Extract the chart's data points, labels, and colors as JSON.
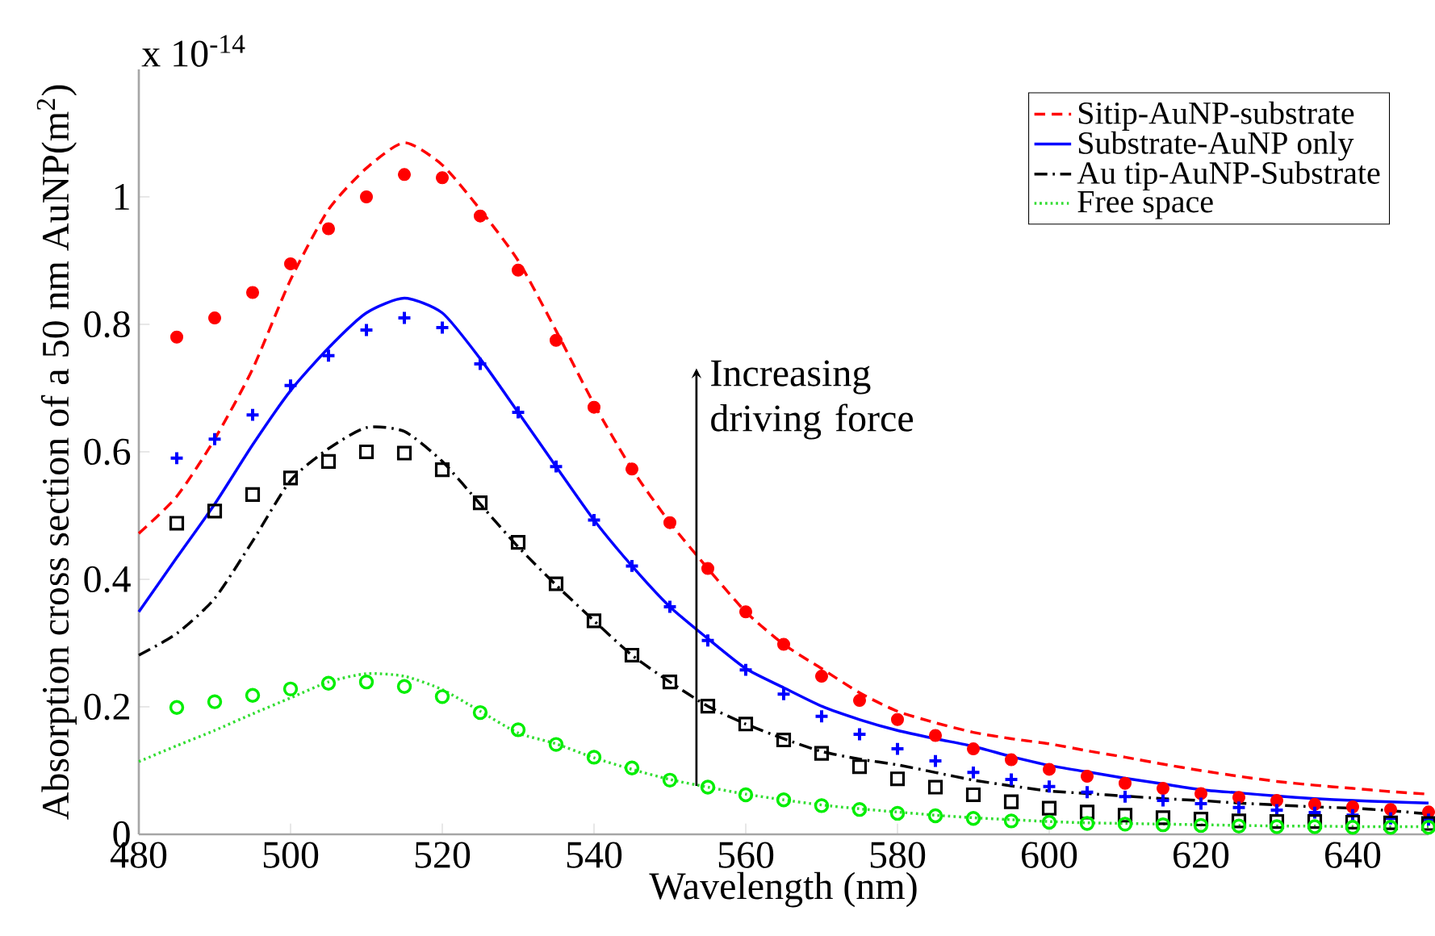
{
  "chart_data": {
    "type": "line",
    "xlabel": "Wavelength (nm)",
    "ylabel": "Absorption cross section of a 50 nm AuNP(m$^{2}$)",
    "x": [
      480,
      485,
      490,
      495,
      500,
      505,
      510,
      515,
      520,
      525,
      530,
      535,
      540,
      545,
      550,
      555,
      560,
      565,
      570,
      575,
      580,
      585,
      590,
      595,
      600,
      605,
      610,
      615,
      620,
      625,
      630,
      635,
      640,
      645,
      650
    ],
    "series": [
      {
        "name": "Sitip-AuNP-substrate",
        "color": "#ff0000",
        "line_style": "dashed",
        "values": [
          0.472,
          0.53,
          0.62,
          0.73,
          0.87,
          0.98,
          1.045,
          1.085,
          1.05,
          0.98,
          0.9,
          0.79,
          0.675,
          0.573,
          0.489,
          0.417,
          0.349,
          0.298,
          0.26,
          0.222,
          0.193,
          0.175,
          0.16,
          0.15,
          0.142,
          0.131,
          0.121,
          0.11,
          0.1,
          0.091,
          0.083,
          0.077,
          0.072,
          0.067,
          0.063
        ]
      },
      {
        "name": "Substrate-AuNP only",
        "color": "#0000ff",
        "line_style": "solid",
        "values": [
          0.349,
          0.434,
          0.518,
          0.611,
          0.696,
          0.763,
          0.818,
          0.841,
          0.818,
          0.746,
          0.662,
          0.577,
          0.493,
          0.421,
          0.357,
          0.307,
          0.26,
          0.23,
          0.201,
          0.18,
          0.163,
          0.15,
          0.138,
          0.122,
          0.108,
          0.098,
          0.088,
          0.079,
          0.07,
          0.065,
          0.06,
          0.056,
          0.053,
          0.051,
          0.049
        ]
      },
      {
        "name": "Au tip-AuNP-Substrate",
        "color": "#000000",
        "line_style": "dashdot",
        "values": [
          0.281,
          0.315,
          0.37,
          0.46,
          0.555,
          0.605,
          0.638,
          0.632,
          0.585,
          0.518,
          0.451,
          0.391,
          0.335,
          0.281,
          0.239,
          0.201,
          0.173,
          0.15,
          0.13,
          0.118,
          0.109,
          0.097,
          0.085,
          0.076,
          0.068,
          0.064,
          0.06,
          0.056,
          0.053,
          0.049,
          0.046,
          0.043,
          0.041,
          0.037,
          0.032
        ]
      },
      {
        "name": "Free space",
        "color": "#33dd33",
        "line_style": "dotted",
        "values": [
          0.114,
          0.139,
          0.163,
          0.189,
          0.214,
          0.239,
          0.252,
          0.248,
          0.227,
          0.193,
          0.159,
          0.142,
          0.12,
          0.102,
          0.086,
          0.074,
          0.063,
          0.054,
          0.046,
          0.04,
          0.035,
          0.03,
          0.026,
          0.023,
          0.02,
          0.018,
          0.017,
          0.016,
          0.015,
          0.014,
          0.013,
          0.013,
          0.012,
          0.012,
          0.012
        ]
      },
      {
        "type": "scatter",
        "marker": "circle",
        "color": "#ff0000",
        "x": [
          485,
          490,
          495,
          500,
          505,
          510,
          515,
          520,
          525,
          530,
          535,
          540,
          545,
          550,
          555,
          560,
          565,
          570,
          575,
          580,
          585,
          590,
          595,
          600,
          605,
          610,
          615,
          620,
          625,
          630,
          635,
          640,
          645,
          650
        ],
        "values": [
          0.78,
          0.81,
          0.85,
          0.895,
          0.95,
          1.0,
          1.035,
          1.03,
          0.97,
          0.885,
          0.775,
          0.67,
          0.573,
          0.489,
          0.417,
          0.349,
          0.298,
          0.248,
          0.21,
          0.18,
          0.155,
          0.134,
          0.117,
          0.102,
          0.091,
          0.08,
          0.072,
          0.064,
          0.058,
          0.053,
          0.047,
          0.043,
          0.039,
          0.035
        ]
      },
      {
        "type": "scatter",
        "marker": "plus",
        "color": "#0000ff",
        "x": [
          485,
          490,
          495,
          500,
          505,
          510,
          515,
          520,
          525,
          530,
          535,
          540,
          545,
          550,
          555,
          560,
          565,
          570,
          575,
          580,
          585,
          590,
          595,
          600,
          605,
          610,
          615,
          620,
          625,
          630,
          635,
          640,
          645,
          650
        ],
        "values": [
          0.59,
          0.62,
          0.658,
          0.704,
          0.751,
          0.791,
          0.81,
          0.795,
          0.738,
          0.662,
          0.577,
          0.493,
          0.421,
          0.357,
          0.304,
          0.258,
          0.22,
          0.185,
          0.157,
          0.134,
          0.115,
          0.097,
          0.086,
          0.075,
          0.066,
          0.059,
          0.053,
          0.048,
          0.042,
          0.038,
          0.034,
          0.03,
          0.025,
          0.023
        ]
      },
      {
        "type": "scatter",
        "marker": "square",
        "color": "#000000",
        "x": [
          485,
          490,
          495,
          500,
          505,
          510,
          515,
          520,
          525,
          530,
          535,
          540,
          545,
          550,
          555,
          560,
          565,
          570,
          575,
          580,
          585,
          590,
          595,
          600,
          605,
          610,
          615,
          620,
          625,
          630,
          635,
          640,
          645,
          650
        ],
        "values": [
          0.488,
          0.507,
          0.533,
          0.559,
          0.585,
          0.6,
          0.598,
          0.572,
          0.52,
          0.458,
          0.393,
          0.335,
          0.281,
          0.239,
          0.201,
          0.173,
          0.148,
          0.127,
          0.106,
          0.087,
          0.074,
          0.062,
          0.051,
          0.041,
          0.035,
          0.03,
          0.026,
          0.024,
          0.021,
          0.02,
          0.02,
          0.019,
          0.018,
          0.017
        ]
      },
      {
        "type": "scatter",
        "marker": "circle_open",
        "color": "#00ee00",
        "x": [
          485,
          490,
          495,
          500,
          505,
          510,
          515,
          520,
          525,
          530,
          535,
          540,
          545,
          550,
          555,
          560,
          565,
          570,
          575,
          580,
          585,
          590,
          595,
          600,
          605,
          610,
          615,
          620,
          625,
          630,
          635,
          640,
          645,
          650
        ],
        "values": [
          0.199,
          0.208,
          0.218,
          0.228,
          0.237,
          0.239,
          0.232,
          0.216,
          0.191,
          0.164,
          0.141,
          0.121,
          0.104,
          0.085,
          0.074,
          0.062,
          0.054,
          0.045,
          0.039,
          0.033,
          0.029,
          0.025,
          0.021,
          0.019,
          0.017,
          0.016,
          0.015,
          0.014,
          0.013,
          0.012,
          0.012,
          0.011,
          0.011,
          0.011
        ]
      }
    ],
    "xlim": [
      480,
      650
    ],
    "ylim": [
      0,
      1.2
    ],
    "xticks": [
      480,
      500,
      520,
      540,
      560,
      580,
      600,
      620,
      640
    ],
    "yticks": [
      0,
      0.2,
      0.4,
      0.6,
      0.8,
      1
    ],
    "legend": "top right",
    "grid": false,
    "annotations": [
      "x 10$^{-14}$",
      {
        "text": "Increasing driving force",
        "x": 553.5,
        "y": 0.076
      }
    ]
  }
}
